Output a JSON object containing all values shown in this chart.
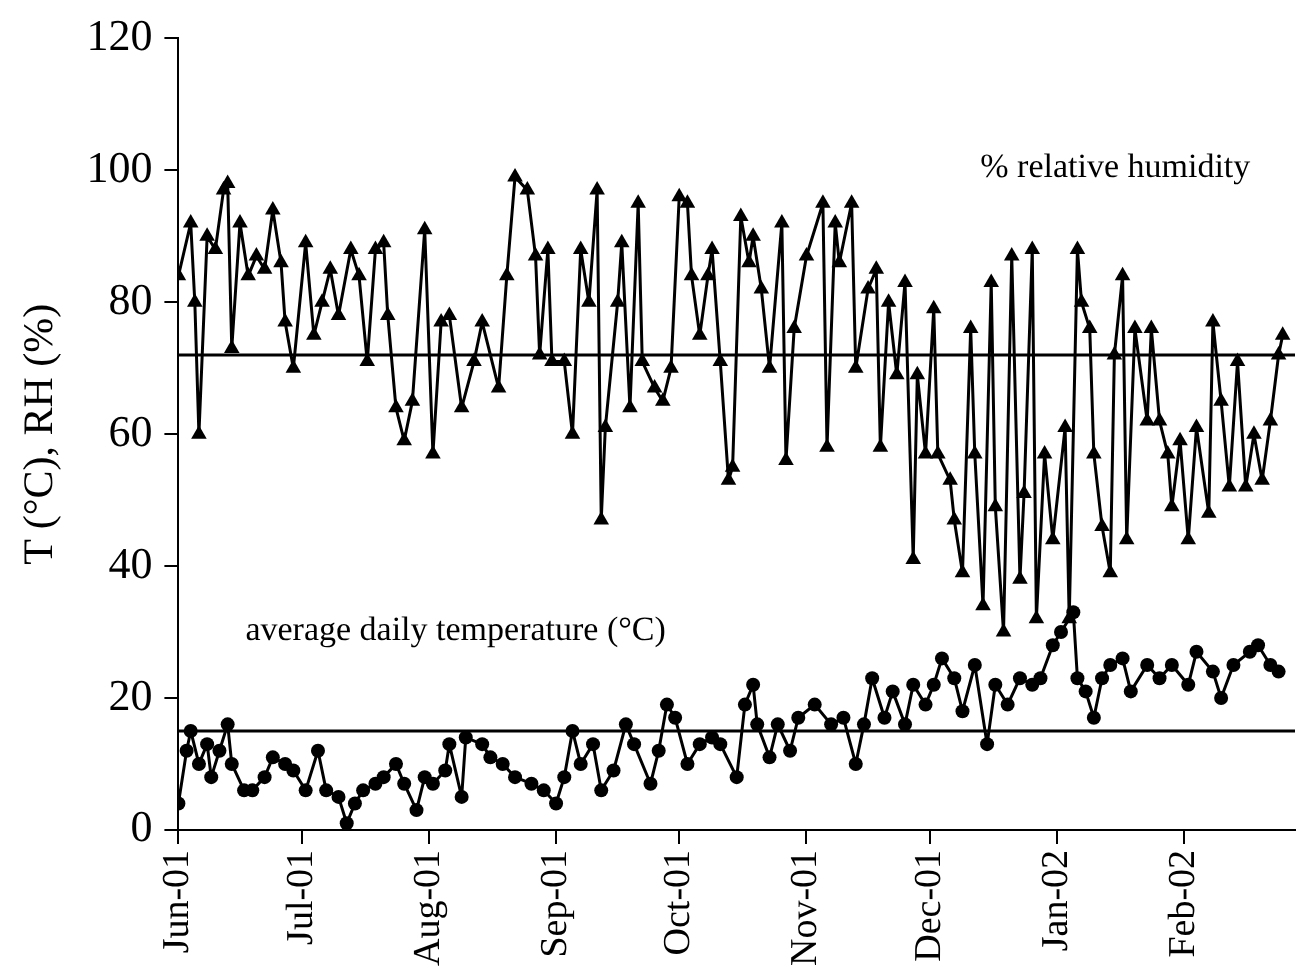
{
  "chart_data": {
    "type": "line",
    "ylabel": "T (°C), RH (%)",
    "xlim": [
      "2001-06-01",
      "2002-02-28"
    ],
    "xticks": [
      {
        "value": "2001-06-01",
        "label": "Jun-01"
      },
      {
        "value": "2001-07-01",
        "label": "Jul-01"
      },
      {
        "value": "2001-08-01",
        "label": "Aug-01"
      },
      {
        "value": "2001-09-01",
        "label": "Sep-01"
      },
      {
        "value": "2001-10-01",
        "label": "Oct-01"
      },
      {
        "value": "2001-11-01",
        "label": "Nov-01"
      },
      {
        "value": "2001-12-01",
        "label": "Dec-01"
      },
      {
        "value": "2002-01-01",
        "label": "Jan-02"
      },
      {
        "value": "2002-02-01",
        "label": "Feb-02"
      }
    ],
    "ylim": [
      0,
      120
    ],
    "yticks": [
      0,
      20,
      40,
      60,
      80,
      100,
      120
    ],
    "grid": false,
    "legend": false,
    "line_style": "solid",
    "ref_lines": [
      {
        "axis": "y",
        "value": 72,
        "color": "#000000"
      },
      {
        "axis": "y",
        "value": 15,
        "color": "#000000"
      }
    ],
    "series": [
      {
        "name": "% relative humidity",
        "color": "#000000",
        "marker": "triangle",
        "x": [
          "2001-06-01",
          "2001-06-04",
          "2001-06-05",
          "2001-06-06",
          "2001-06-08",
          "2001-06-10",
          "2001-06-12",
          "2001-06-13",
          "2001-06-14",
          "2001-06-16",
          "2001-06-18",
          "2001-06-20",
          "2001-06-22",
          "2001-06-24",
          "2001-06-26",
          "2001-06-27",
          "2001-06-29",
          "2001-07-02",
          "2001-07-04",
          "2001-07-06",
          "2001-07-08",
          "2001-07-10",
          "2001-07-13",
          "2001-07-15",
          "2001-07-17",
          "2001-07-19",
          "2001-07-21",
          "2001-07-22",
          "2001-07-24",
          "2001-07-26",
          "2001-07-28",
          "2001-07-31",
          "2001-08-02",
          "2001-08-04",
          "2001-08-06",
          "2001-08-09",
          "2001-08-12",
          "2001-08-14",
          "2001-08-18",
          "2001-08-20",
          "2001-08-22",
          "2001-08-25",
          "2001-08-27",
          "2001-08-28",
          "2001-08-30",
          "2001-08-31",
          "2001-09-03",
          "2001-09-05",
          "2001-09-07",
          "2001-09-09",
          "2001-09-11",
          "2001-09-12",
          "2001-09-13",
          "2001-09-16",
          "2001-09-17",
          "2001-09-19",
          "2001-09-21",
          "2001-09-22",
          "2001-09-25",
          "2001-09-27",
          "2001-09-29",
          "2001-10-01",
          "2001-10-03",
          "2001-10-04",
          "2001-10-06",
          "2001-10-08",
          "2001-10-09",
          "2001-10-11",
          "2001-10-13",
          "2001-10-14",
          "2001-10-16",
          "2001-10-18",
          "2001-10-19",
          "2001-10-21",
          "2001-10-23",
          "2001-10-26",
          "2001-10-27",
          "2001-10-29",
          "2001-11-01",
          "2001-11-05",
          "2001-11-06",
          "2001-11-08",
          "2001-11-09",
          "2001-11-12",
          "2001-11-13",
          "2001-11-16",
          "2001-11-18",
          "2001-11-19",
          "2001-11-21",
          "2001-11-23",
          "2001-11-25",
          "2001-11-27",
          "2001-11-28",
          "2001-11-30",
          "2001-12-02",
          "2001-12-03",
          "2001-12-06",
          "2001-12-07",
          "2001-12-09",
          "2001-12-11",
          "2001-12-12",
          "2001-12-14",
          "2001-12-16",
          "2001-12-17",
          "2001-12-19",
          "2001-12-21",
          "2001-12-23",
          "2001-12-24",
          "2001-12-26",
          "2001-12-27",
          "2001-12-29",
          "2001-12-31",
          "2002-01-03",
          "2002-01-04",
          "2002-01-06",
          "2002-01-07",
          "2002-01-09",
          "2002-01-10",
          "2002-01-12",
          "2002-01-14",
          "2002-01-15",
          "2002-01-17",
          "2002-01-18",
          "2002-01-20",
          "2002-01-23",
          "2002-01-24",
          "2002-01-26",
          "2002-01-28",
          "2002-01-29",
          "2002-01-31",
          "2002-02-02",
          "2002-02-04",
          "2002-02-07",
          "2002-02-08",
          "2002-02-10",
          "2002-02-12",
          "2002-02-14",
          "2002-02-16",
          "2002-02-18",
          "2002-02-20",
          "2002-02-22",
          "2002-02-24",
          "2002-02-25"
        ],
        "values": [
          84,
          92,
          80,
          60,
          90,
          88,
          97,
          98,
          73,
          92,
          84,
          87,
          85,
          94,
          86,
          77,
          70,
          89,
          75,
          80,
          85,
          78,
          88,
          84,
          71,
          88,
          89,
          78,
          64,
          59,
          65,
          91,
          57,
          77,
          78,
          64,
          71,
          77,
          67,
          84,
          99,
          97,
          87,
          72,
          88,
          71,
          71,
          60,
          88,
          80,
          97,
          47,
          61,
          80,
          89,
          64,
          95,
          71,
          67,
          65,
          70,
          96,
          95,
          84,
          75,
          84,
          88,
          71,
          53,
          55,
          93,
          86,
          90,
          82,
          70,
          92,
          56,
          76,
          87,
          95,
          58,
          92,
          86,
          95,
          70,
          82,
          85,
          58,
          80,
          69,
          83,
          41,
          69,
          57,
          79,
          57,
          53,
          47,
          39,
          76,
          57,
          34,
          83,
          49,
          30,
          87,
          38,
          51,
          88,
          32,
          57,
          44,
          61,
          32,
          88,
          80,
          76,
          57,
          46,
          39,
          72,
          84,
          44,
          76,
          62,
          76,
          62,
          57,
          49,
          59,
          44,
          61,
          48,
          77,
          65,
          52,
          71,
          52,
          60,
          53,
          62,
          72,
          75
        ]
      },
      {
        "name": "average daily temperature (°C)",
        "color": "#000000",
        "marker": "circle",
        "x": [
          "2001-06-01",
          "2001-06-03",
          "2001-06-04",
          "2001-06-06",
          "2001-06-08",
          "2001-06-09",
          "2001-06-11",
          "2001-06-13",
          "2001-06-14",
          "2001-06-17",
          "2001-06-19",
          "2001-06-22",
          "2001-06-24",
          "2001-06-27",
          "2001-06-29",
          "2001-07-02",
          "2001-07-05",
          "2001-07-07",
          "2001-07-10",
          "2001-07-12",
          "2001-07-14",
          "2001-07-16",
          "2001-07-19",
          "2001-07-21",
          "2001-07-24",
          "2001-07-26",
          "2001-07-29",
          "2001-07-31",
          "2001-08-02",
          "2001-08-05",
          "2001-08-06",
          "2001-08-09",
          "2001-08-10",
          "2001-08-14",
          "2001-08-16",
          "2001-08-19",
          "2001-08-22",
          "2001-08-26",
          "2001-08-29",
          "2001-09-01",
          "2001-09-03",
          "2001-09-05",
          "2001-09-07",
          "2001-09-10",
          "2001-09-12",
          "2001-09-15",
          "2001-09-18",
          "2001-09-20",
          "2001-09-24",
          "2001-09-26",
          "2001-09-28",
          "2001-09-30",
          "2001-10-03",
          "2001-10-06",
          "2001-10-09",
          "2001-10-11",
          "2001-10-15",
          "2001-10-17",
          "2001-10-19",
          "2001-10-20",
          "2001-10-23",
          "2001-10-25",
          "2001-10-28",
          "2001-10-30",
          "2001-11-03",
          "2001-11-07",
          "2001-11-10",
          "2001-11-13",
          "2001-11-15",
          "2001-11-17",
          "2001-11-20",
          "2001-11-22",
          "2001-11-25",
          "2001-11-27",
          "2001-11-30",
          "2001-12-02",
          "2001-12-04",
          "2001-12-07",
          "2001-12-09",
          "2001-12-12",
          "2001-12-15",
          "2001-12-17",
          "2001-12-20",
          "2001-12-23",
          "2001-12-26",
          "2001-12-28",
          "2001-12-31",
          "2002-01-02",
          "2002-01-05",
          "2002-01-06",
          "2002-01-08",
          "2002-01-10",
          "2002-01-12",
          "2002-01-14",
          "2002-01-17",
          "2002-01-19",
          "2002-01-23",
          "2002-01-26",
          "2002-01-29",
          "2002-02-02",
          "2002-02-04",
          "2002-02-08",
          "2002-02-10",
          "2002-02-13",
          "2002-02-17",
          "2002-02-19",
          "2002-02-22",
          "2002-02-24"
        ],
        "values": [
          4,
          12,
          15,
          10,
          13,
          8,
          12,
          16,
          10,
          6,
          6,
          8,
          11,
          10,
          9,
          6,
          12,
          6,
          5,
          1,
          4,
          6,
          7,
          8,
          10,
          7,
          3,
          8,
          7,
          9,
          13,
          5,
          14,
          13,
          11,
          10,
          8,
          7,
          6,
          4,
          8,
          15,
          10,
          13,
          6,
          9,
          16,
          13,
          7,
          12,
          19,
          17,
          10,
          13,
          14,
          13,
          8,
          19,
          22,
          16,
          11,
          16,
          12,
          17,
          19,
          16,
          17,
          10,
          16,
          23,
          17,
          21,
          16,
          22,
          19,
          22,
          26,
          23,
          18,
          25,
          13,
          22,
          19,
          23,
          22,
          23,
          28,
          30,
          33,
          23,
          21,
          17,
          23,
          25,
          26,
          21,
          25,
          23,
          25,
          22,
          27,
          24,
          20,
          25,
          27,
          28,
          25,
          24
        ]
      }
    ]
  }
}
